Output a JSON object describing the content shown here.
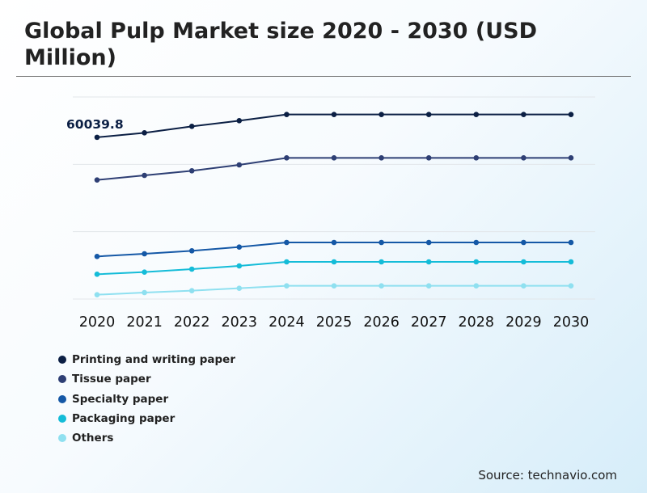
{
  "title": "Global Pulp Market size 2020 - 2030 (USD Million)",
  "source": "Source: technavio.com",
  "colors": {
    "printing": "#0b1f44",
    "tissue": "#2e3f74",
    "specialty": "#1558a6",
    "packaging": "#14bcd8",
    "others": "#8fe0f0",
    "grid": "#e2e6ea"
  },
  "chart_data": {
    "type": "line",
    "title": "Global Pulp Market size 2020 - 2030 (USD Million)",
    "xlabel": "",
    "ylabel": "",
    "categories": [
      "2020",
      "2021",
      "2022",
      "2023",
      "2024",
      "2025",
      "2026",
      "2027",
      "2028",
      "2029",
      "2030"
    ],
    "ylim": [
      0,
      75000
    ],
    "grid": true,
    "legend": "bottom-left",
    "annotation": {
      "text": "60039.8",
      "series": 0,
      "index": 0
    },
    "series": [
      {
        "name": "Printing and writing paper",
        "color": "#0b1f44",
        "values": [
          60039.8,
          61700,
          64100,
          66200,
          68500,
          68500,
          68500,
          68500,
          68500,
          68500,
          68500
        ]
      },
      {
        "name": "Tissue paper",
        "color": "#2e3f74",
        "values": [
          44200,
          45900,
          47600,
          49800,
          52400,
          52400,
          52400,
          52400,
          52400,
          52400,
          52400
        ]
      },
      {
        "name": "Specialty paper",
        "color": "#1558a6",
        "values": [
          15800,
          16800,
          17900,
          19300,
          21000,
          21000,
          21000,
          21000,
          21000,
          21000,
          21000
        ]
      },
      {
        "name": "Packaging paper",
        "color": "#14bcd8",
        "values": [
          9200,
          10000,
          11100,
          12300,
          13800,
          13800,
          13800,
          13800,
          13800,
          13800,
          13800
        ]
      },
      {
        "name": "Others",
        "color": "#8fe0f0",
        "values": [
          1600,
          2400,
          3100,
          4000,
          4900,
          4900,
          4900,
          4900,
          4900,
          4900,
          4900
        ]
      }
    ]
  }
}
